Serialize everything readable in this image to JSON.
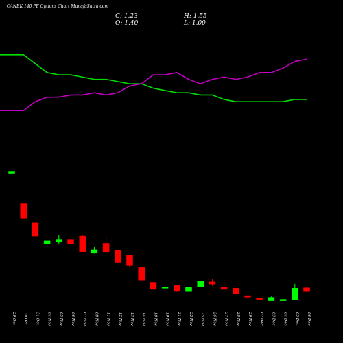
{
  "header": {
    "title": "CANBK 140 PE Options Chart MunafaSutra.com",
    "close": "C: 1.23",
    "high": "H: 1.55",
    "open": "O: 1.40",
    "low": "L: 1.00"
  },
  "colors": {
    "background": "#000000",
    "up": "#00ff00",
    "down": "#ff0000",
    "line_green": "#00e000",
    "line_magenta": "#c000c0",
    "text": "#ffffff"
  },
  "chart_data": {
    "type": "candlestick",
    "title": "CANBK 140 PE Options Chart MunafaSutra.com",
    "categories": [
      "29 Oct",
      "30 Oct",
      "31 Oct",
      "04 Nov",
      "05 Nov",
      "06 Nov",
      "07 Nov",
      "08 Nov",
      "11 Nov",
      "12 Nov",
      "13 Nov",
      "14 Nov",
      "18 Nov",
      "19 Nov",
      "21 Nov",
      "22 Nov",
      "25 Nov",
      "26 Nov",
      "27 Nov",
      "28 Nov",
      "29 Nov",
      "02 Dec",
      "03 Dec",
      "04 Dec",
      "05 Dec",
      "06 Dec"
    ],
    "candles": [
      {
        "o": 44.6,
        "h": 44.7,
        "l": 44.5,
        "c": 44.6
      },
      {
        "o": 30.5,
        "h": 30.5,
        "l": 23.8,
        "c": 23.8
      },
      {
        "o": 21.8,
        "h": 21.8,
        "l": 15.9,
        "c": 15.9
      },
      {
        "o": 12.4,
        "h": 13.2,
        "l": 11.3,
        "c": 13.8
      },
      {
        "o": 13.2,
        "h": 16.2,
        "l": 12.2,
        "c": 14.2
      },
      {
        "o": 14.2,
        "h": 14.2,
        "l": 12.4,
        "c": 12.6
      },
      {
        "o": 15.9,
        "h": 16.4,
        "l": 8.9,
        "c": 8.9
      },
      {
        "o": 8.3,
        "h": 11.0,
        "l": 8.1,
        "c": 9.8
      },
      {
        "o": 12.7,
        "h": 16.1,
        "l": 8.6,
        "c": 8.6
      },
      {
        "o": 9.5,
        "h": 9.5,
        "l": 3.7,
        "c": 4.1
      },
      {
        "o": 7.5,
        "h": 7.5,
        "l": 2.1,
        "c": 2.6
      },
      {
        "o": 2.0,
        "h": 2.0,
        "l": -3.8,
        "c": -3.8
      },
      {
        "o": -4.8,
        "h": -4.8,
        "l": -8.0,
        "c": -8.0
      },
      {
        "o": -7.2,
        "h": -6.6,
        "l": -7.8,
        "c": -6.9
      },
      {
        "o": -6.3,
        "h": -6.3,
        "l": -8.9,
        "c": -8.6
      },
      {
        "o": -8.7,
        "h": -7.2,
        "l": -8.7,
        "c": -6.9
      },
      {
        "o": -6.7,
        "h": -4.4,
        "l": -6.8,
        "c": -4.4
      },
      {
        "o": -4.6,
        "h": -3.2,
        "l": -6.4,
        "c": -5.6
      },
      {
        "o": -7.2,
        "h": -3.1,
        "l": -8.7,
        "c": -8.0
      },
      {
        "o": -7.5,
        "h": -7.5,
        "l": -10.1,
        "c": -10.1
      },
      {
        "o": -10.8,
        "h": -10.8,
        "l": -11.5,
        "c": -11.5
      },
      {
        "o": -11.9,
        "h": -11.9,
        "l": -12.1,
        "c": -12.1
      },
      {
        "o": -13.1,
        "h": -11.2,
        "l": -13.1,
        "c": -11.6
      },
      {
        "o": -13.1,
        "h": -11.7,
        "l": -13.1,
        "c": -12.5
      },
      {
        "o": -12.8,
        "h": -5.5,
        "l": -12.8,
        "c": -7.5
      },
      {
        "o": -7.3,
        "h": -7.3,
        "l": -9.2,
        "c": -8.7
      }
    ],
    "series": [
      {
        "values": [
          97,
          97,
          93,
          89,
          88,
          88,
          87,
          86,
          86,
          85,
          84,
          84,
          82,
          81,
          80,
          80,
          79,
          79,
          77,
          76,
          76,
          76,
          76,
          76,
          77,
          77
        ]
      },
      {
        "values": [
          72,
          72,
          76,
          78,
          78,
          79,
          79,
          80,
          79,
          80,
          83,
          84,
          88,
          88,
          89,
          86,
          84,
          86,
          87,
          86,
          87,
          89,
          89,
          91,
          94,
          95
        ]
      }
    ],
    "ylim": [
      -16,
      100
    ]
  }
}
